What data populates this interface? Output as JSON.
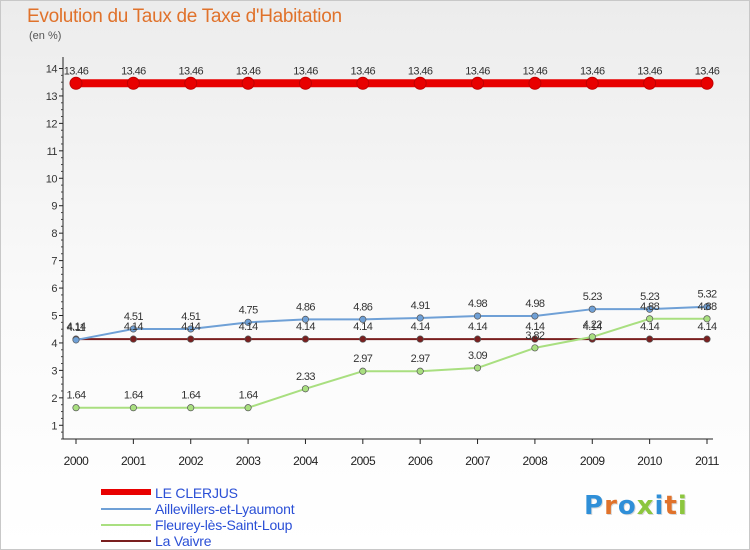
{
  "title": "Evolution du Taux de Taxe d'Habitation",
  "unit": "(en %)",
  "logo": {
    "text": "Proxiti",
    "colors": [
      "#2f8fd8",
      "#e0722b",
      "#2f8fd8",
      "#8cc63e",
      "#2f8fd8",
      "#e0722b",
      "#8cc63e"
    ]
  },
  "chart_data": {
    "type": "line",
    "title": "Evolution du Taux de Taxe d'Habitation",
    "ylabel": "(en %)",
    "xlabel": "",
    "x": [
      "2000",
      "2001",
      "2002",
      "2003",
      "2004",
      "2005",
      "2006",
      "2007",
      "2008",
      "2009",
      "2010",
      "2011"
    ],
    "yticks": [
      "1",
      "2",
      "3",
      "4",
      "5",
      "6",
      "7",
      "8",
      "9",
      "10",
      "11",
      "12",
      "13",
      "14"
    ],
    "ylim": [
      0.5,
      14.2
    ],
    "grid": false,
    "legend": "bottom-left",
    "series": [
      {
        "name": "LE CLERJUS",
        "color": "#e80000",
        "values": [
          13.46,
          13.46,
          13.46,
          13.46,
          13.46,
          13.46,
          13.46,
          13.46,
          13.46,
          13.46,
          13.46,
          13.46
        ],
        "labels": [
          "13.46",
          "13.46",
          "13.46",
          "13.46",
          "13.46",
          "13.46",
          "13.46",
          "13.46",
          "13.46",
          "13.46",
          "13.46",
          "13.46"
        ]
      },
      {
        "name": "Aillevillers-et-Lyaumont",
        "color": "#6fa0d6",
        "values": [
          4.11,
          4.51,
          4.51,
          4.75,
          4.86,
          4.86,
          4.91,
          4.98,
          4.98,
          5.23,
          5.23,
          5.32
        ],
        "labels": [
          "4.11",
          "4.51",
          "4.51",
          "4.75",
          "4.86",
          "4.86",
          "4.91",
          "4.98",
          "4.98",
          "5.23",
          "5.23",
          "5.32"
        ]
      },
      {
        "name": "Fleurey-lès-Saint-Loup",
        "color": "#a9df80",
        "values": [
          1.64,
          1.64,
          1.64,
          1.64,
          2.33,
          2.97,
          2.97,
          3.09,
          3.82,
          4.22,
          4.88,
          4.88
        ],
        "labels": [
          "1.64",
          "1.64",
          "1.64",
          "1.64",
          "2.33",
          "2.97",
          "2.97",
          "3.09",
          "3.82",
          "4.22",
          "4.88",
          "4.88"
        ]
      },
      {
        "name": "La Vaivre",
        "color": "#7a1f1f",
        "values": [
          4.14,
          4.14,
          4.14,
          4.14,
          4.14,
          4.14,
          4.14,
          4.14,
          4.14,
          4.14,
          4.14,
          4.14
        ],
        "labels": [
          "4.14",
          "4.14",
          "4.14",
          "4.14",
          "4.14",
          "4.14",
          "4.14",
          "4.14",
          "4.14",
          "4.14",
          "4.14",
          "4.14"
        ]
      }
    ]
  }
}
